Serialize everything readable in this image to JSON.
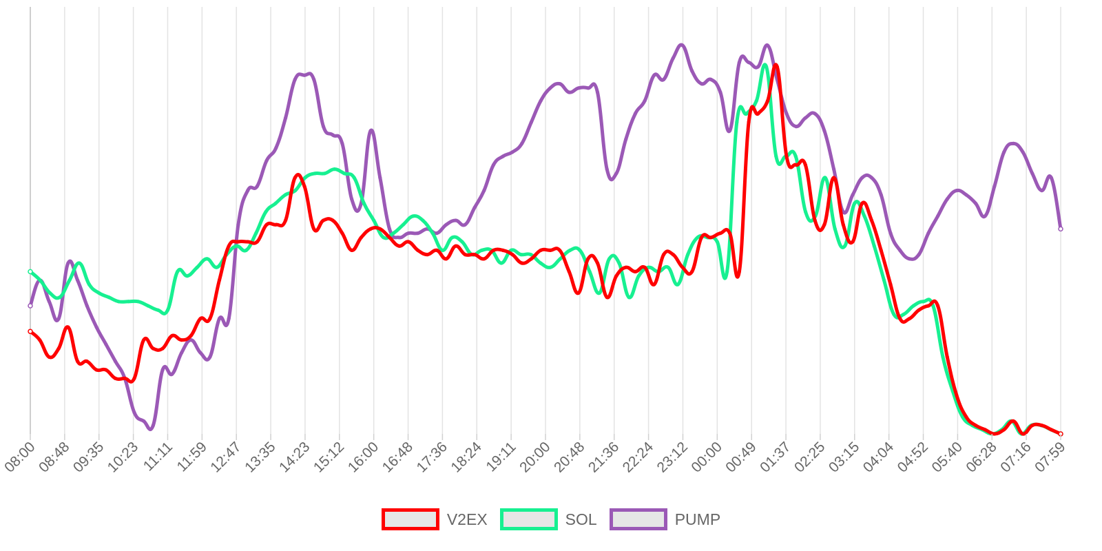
{
  "chart_data": {
    "type": "line",
    "x_tick_labels": [
      "08:00",
      "08:48",
      "09:35",
      "10:23",
      "11:11",
      "11:59",
      "12:47",
      "13:35",
      "14:23",
      "15:12",
      "16:00",
      "16:48",
      "17:36",
      "18:24",
      "19:11",
      "20:00",
      "20:48",
      "21:36",
      "22:24",
      "23:12",
      "00:00",
      "00:49",
      "01:37",
      "02:25",
      "03:15",
      "04:04",
      "04:52",
      "05:40",
      "06:28",
      "07:16",
      "07:59"
    ],
    "y_range": [
      0,
      100
    ],
    "y_axis_labels_shown": false,
    "grid": {
      "vertical": true,
      "horizontal": false
    },
    "legend_position": "bottom-center",
    "series": [
      {
        "name": "V2EX",
        "color": "#ff0000",
        "values": [
          24,
          22,
          18,
          20,
          25,
          17,
          17,
          15,
          15,
          13,
          13,
          13,
          22,
          20,
          20,
          23,
          22,
          23,
          27,
          27,
          36,
          44,
          45,
          45,
          45,
          49,
          49,
          50,
          60,
          58,
          48,
          50,
          50,
          47,
          43,
          46,
          48,
          48,
          46,
          44,
          45,
          43,
          42,
          43,
          41,
          44,
          42,
          42,
          41,
          43,
          43,
          42,
          40,
          41,
          43,
          43,
          43,
          38,
          33,
          41,
          40,
          32,
          37,
          39,
          38,
          39,
          35,
          42,
          42,
          39,
          38,
          46,
          46,
          47,
          47,
          38,
          73,
          75,
          78,
          86,
          65,
          63,
          63,
          50,
          49,
          60,
          49,
          45,
          54,
          50,
          43,
          35,
          27,
          27,
          29,
          30,
          30,
          18,
          9,
          4,
          2,
          1,
          0,
          1,
          3,
          0,
          2,
          2,
          1,
          0
        ],
        "point_color": "#ff0000"
      },
      {
        "name": "SOL",
        "color": "#17f091",
        "values": [
          38,
          36,
          33,
          32,
          36,
          40,
          35,
          33,
          32,
          31,
          31,
          31,
          30,
          29,
          29,
          38,
          37,
          39,
          41,
          39,
          42,
          44,
          43,
          47,
          52,
          54,
          56,
          57,
          60,
          61,
          61,
          62,
          61,
          60,
          54,
          50,
          46,
          47,
          49,
          51,
          50,
          47,
          43,
          46,
          45,
          42,
          43,
          43,
          40,
          43,
          42,
          42,
          40,
          39,
          41,
          43,
          43,
          38,
          33,
          41,
          40,
          32,
          37,
          39,
          38,
          39,
          35,
          42,
          46,
          46,
          45,
          38,
          73,
          75,
          78,
          86,
          65,
          65,
          65,
          52,
          51,
          60,
          48,
          44,
          54,
          51,
          44,
          36,
          28,
          28,
          30,
          31,
          30,
          18,
          10,
          4,
          2,
          1,
          0,
          1,
          3,
          0,
          2,
          2,
          1,
          0
        ],
        "point_color": "#17f091"
      },
      {
        "name": "PUMP",
        "color": "#9b59b6",
        "values": [
          30,
          36,
          31,
          27,
          40,
          36,
          30,
          25,
          21,
          17,
          13,
          5,
          3,
          2,
          15,
          14,
          19,
          22,
          19,
          18,
          27,
          27,
          49,
          57,
          58,
          64,
          67,
          74,
          83,
          84,
          83,
          72,
          70,
          68,
          55,
          54,
          71,
          60,
          48,
          46,
          47,
          47,
          48,
          47,
          49,
          50,
          49,
          53,
          57,
          63,
          65,
          66,
          68,
          73,
          78,
          81,
          82,
          80,
          81,
          81,
          80,
          62,
          61,
          69,
          75,
          78,
          84,
          83,
          88,
          91,
          85,
          82,
          83,
          80,
          71,
          87,
          87,
          86,
          91,
          83,
          75,
          72,
          74,
          75,
          71,
          62,
          52,
          56,
          60,
          60,
          56,
          47,
          43,
          41,
          42,
          47,
          51,
          55,
          57,
          56,
          54,
          51,
          58,
          66,
          68,
          66,
          61,
          57,
          60,
          48
        ]
      }
    ]
  }
}
